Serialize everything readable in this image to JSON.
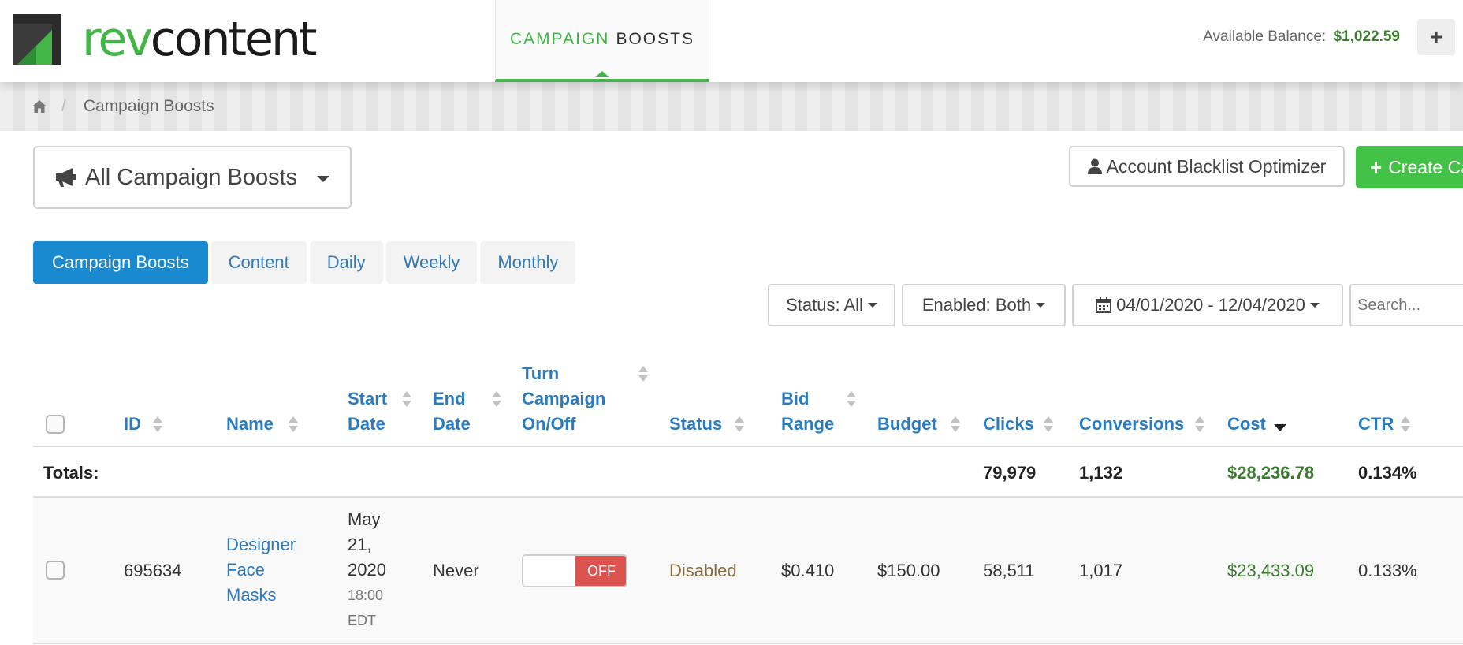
{
  "brand": {
    "logo_rev": "rev",
    "logo_content": "content",
    "logo_icon": "revcontent-logo-icon",
    "accent": "#44b549"
  },
  "header": {
    "nav_tab_word1": "CAMPAIGN",
    "nav_tab_word2": "BOOSTS",
    "balance_label": "Available Balance:",
    "balance_value": "$1,022.59",
    "plus_label": "+"
  },
  "breadcrumb": {
    "home_icon": "home-icon",
    "separator": "/",
    "current": "Campaign Boosts"
  },
  "controls": {
    "campaign_dropdown": "All Campaign Boosts",
    "blacklist_button": "Account Blacklist Optimizer",
    "create_button_plus": "+",
    "create_button": "Create Ca"
  },
  "tabs": [
    "Campaign Boosts",
    "Content",
    "Daily",
    "Weekly",
    "Monthly"
  ],
  "filters": {
    "status": "Status: All",
    "enabled": "Enabled: Both",
    "date_range": "04/01/2020 - 12/04/2020",
    "search_placeholder": "Search..."
  },
  "table": {
    "headers": {
      "id": "ID",
      "name": "Name",
      "start_date_1": "Start",
      "start_date_2": "Date",
      "end_date_1": "End",
      "end_date_2": "Date",
      "toggle_1": "Turn",
      "toggle_2": "Campaign",
      "toggle_3": "On/Off",
      "status": "Status",
      "bid_1": "Bid",
      "bid_2": "Range",
      "budget": "Budget",
      "clicks": "Clicks",
      "conversions": "Conversions",
      "cost": "Cost",
      "ctr": "CTR"
    },
    "totals": {
      "label": "Totals:",
      "clicks": "79,979",
      "conversions": "1,132",
      "cost": "$28,236.78",
      "ctr": "0.134%"
    },
    "rows": [
      {
        "id": "695634",
        "name_1": "Designer",
        "name_2": "Face",
        "name_3": "Masks",
        "start_1": "May",
        "start_2": "21,",
        "start_3": "2020",
        "start_time": "18:00",
        "start_tz": "EDT",
        "end_date": "Never",
        "toggle_label": "OFF",
        "status": "Disabled",
        "bid_range": "$0.410",
        "budget": "$150.00",
        "clicks": "58,511",
        "conversions": "1,017",
        "cost": "$23,433.09",
        "ctr": "0.133%"
      }
    ]
  }
}
